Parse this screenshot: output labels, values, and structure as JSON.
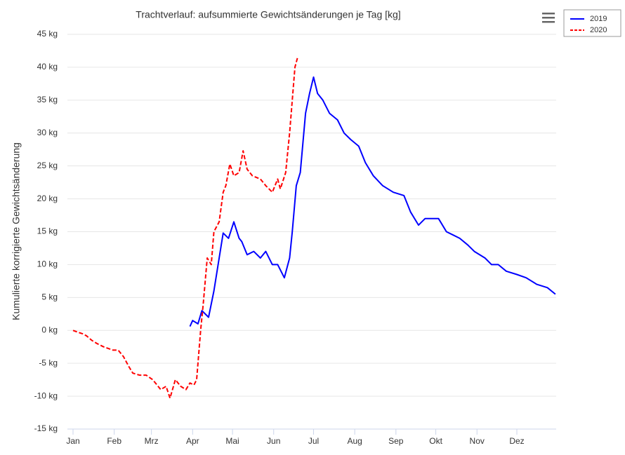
{
  "chart_data": {
    "type": "line",
    "title": "Trachtverlauf: aufsummierte Gewichtsänderungen je Tag [kg]",
    "y_label": "Kumulierte korrigierte Gewichtsänderung",
    "xlim": [
      0,
      365
    ],
    "xticks": [
      {
        "value": 0,
        "label": "Jan"
      },
      {
        "value": 31,
        "label": "Feb"
      },
      {
        "value": 59,
        "label": "Mrz"
      },
      {
        "value": 90,
        "label": "Apr"
      },
      {
        "value": 120,
        "label": "Mai"
      },
      {
        "value": 151,
        "label": "Jun"
      },
      {
        "value": 181,
        "label": "Jul"
      },
      {
        "value": 212,
        "label": "Aug"
      },
      {
        "value": 243,
        "label": "Sep"
      },
      {
        "value": 273,
        "label": "Okt"
      },
      {
        "value": 304,
        "label": "Nov"
      },
      {
        "value": 334,
        "label": "Dez"
      }
    ],
    "ylim": [
      -15,
      45
    ],
    "yticks": [
      {
        "value": -15,
        "label": "-15 kg"
      },
      {
        "value": -10,
        "label": "-10 kg"
      },
      {
        "value": -5,
        "label": "-5 kg"
      },
      {
        "value": 0,
        "label": "0 kg"
      },
      {
        "value": 5,
        "label": "5 kg"
      },
      {
        "value": 10,
        "label": "10 kg"
      },
      {
        "value": 15,
        "label": "15 kg"
      },
      {
        "value": 20,
        "label": "20 kg"
      },
      {
        "value": 25,
        "label": "25 kg"
      },
      {
        "value": 30,
        "label": "30 kg"
      },
      {
        "value": 35,
        "label": "35 kg"
      },
      {
        "value": 40,
        "label": "40 kg"
      },
      {
        "value": 45,
        "label": "45 kg"
      }
    ],
    "grid": true,
    "legend": "top-right",
    "series": [
      {
        "name": "2019",
        "color": "#0000ff",
        "dashed": false,
        "x": [
          88,
          90,
          94,
          97,
          102,
          106,
          110,
          113,
          117,
          121,
          125,
          127,
          131,
          136,
          141,
          145,
          150,
          154,
          159,
          163,
          165,
          168,
          171,
          175,
          178,
          181,
          184,
          188,
          193,
          199,
          204,
          209,
          215,
          220,
          226,
          233,
          241,
          249,
          254,
          260,
          265,
          270,
          275,
          281,
          286,
          291,
          297,
          302,
          310,
          315,
          320,
          326,
          334,
          341,
          349,
          357,
          363
        ],
        "values": [
          0.6,
          1.5,
          1,
          3,
          2,
          6,
          11,
          14.8,
          14,
          16.5,
          14,
          13.5,
          11.5,
          12,
          11,
          12,
          10,
          10,
          8,
          11,
          15,
          22,
          24,
          33,
          36,
          38.5,
          36,
          35,
          33,
          32,
          30,
          29,
          28,
          25.5,
          23.5,
          22,
          21,
          20.5,
          18,
          16,
          17,
          17,
          17,
          15,
          14.5,
          14,
          13,
          12,
          11,
          10,
          10,
          9,
          8.5,
          8,
          7,
          6.5,
          5.5
        ]
      },
      {
        "name": "2020",
        "color": "#ff0000",
        "dashed": true,
        "x": [
          0,
          4,
          7,
          10,
          14,
          18,
          23,
          30,
          34,
          38,
          42,
          45,
          50,
          55,
          60,
          66,
          70,
          73,
          77,
          81,
          85,
          88,
          91,
          93,
          96,
          98,
          101,
          104,
          106,
          110,
          113,
          115,
          118,
          121,
          125,
          128,
          131,
          135,
          141,
          145,
          150,
          154,
          156,
          160,
          163,
          165,
          167,
          169
        ],
        "values": [
          0,
          -0.3,
          -0.5,
          -0.8,
          -1.5,
          -2,
          -2.5,
          -3,
          -3,
          -4,
          -5.5,
          -6.5,
          -6.8,
          -6.8,
          -7.5,
          -9,
          -8.5,
          -10.3,
          -7.5,
          -8.5,
          -9,
          -8,
          -8.3,
          -7.5,
          0,
          4,
          11,
          10,
          15,
          16.5,
          21,
          22,
          25.3,
          23.5,
          24,
          27.3,
          24.5,
          23.5,
          23,
          22,
          21,
          23,
          21.5,
          24,
          30,
          35,
          40,
          41.5
        ]
      }
    ]
  }
}
